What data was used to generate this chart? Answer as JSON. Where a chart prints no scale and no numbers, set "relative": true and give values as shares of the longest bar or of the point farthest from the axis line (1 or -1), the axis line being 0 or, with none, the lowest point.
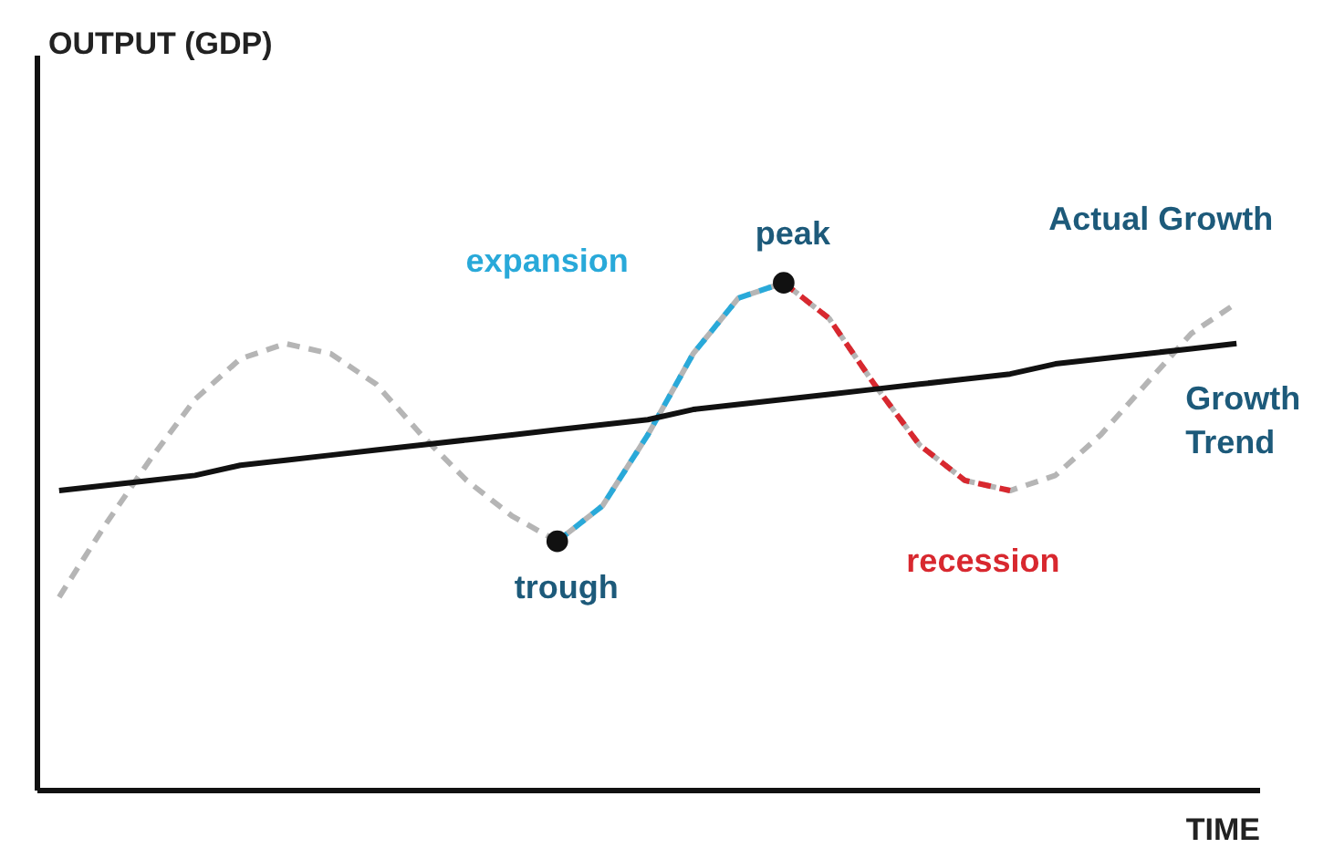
{
  "chart_data": {
    "type": "line",
    "relative": true,
    "xlabel": "TIME",
    "categories": [
      null,
      null,
      null,
      null,
      null,
      null,
      null,
      null,
      null,
      null,
      null,
      null,
      null,
      null,
      null,
      null,
      null,
      null,
      null,
      null,
      null,
      null,
      null,
      null,
      null,
      null,
      null
    ],
    "series": [
      {
        "name": "Actual Growth",
        "color": "#b5b5b5",
        "line_style": "dashed",
        "values": [
          0.38,
          0.52,
          0.65,
          0.77,
          0.85,
          0.88,
          0.86,
          0.8,
          0.7,
          0.61,
          0.54,
          0.49,
          0.56,
          0.7,
          0.86,
          0.97,
          1.0,
          0.93,
          0.8,
          0.68,
          0.61,
          0.59,
          0.62,
          0.7,
          0.8,
          0.9,
          0.96
        ]
      },
      {
        "color": "#29a9d9",
        "line_style": "dashed",
        "values": [
          null,
          null,
          null,
          null,
          null,
          null,
          null,
          null,
          null,
          null,
          null,
          0.49,
          0.56,
          0.7,
          0.86,
          0.97,
          1.0,
          null,
          null,
          null,
          null,
          null,
          null,
          null,
          null,
          null,
          null
        ]
      },
      {
        "color": "#d8282f",
        "line_style": "dashed",
        "values": [
          null,
          null,
          null,
          null,
          null,
          null,
          null,
          null,
          null,
          null,
          null,
          null,
          null,
          null,
          null,
          null,
          1.0,
          0.93,
          0.8,
          0.68,
          0.61,
          0.59,
          null,
          null,
          null,
          null,
          null
        ]
      },
      {
        "name": "Growth Trend",
        "color": "#111111",
        "line_style": "solid",
        "values": [
          0.59,
          0.6,
          0.61,
          0.62,
          0.64,
          0.65,
          0.66,
          0.67,
          0.68,
          0.69,
          0.7,
          0.71,
          0.72,
          0.73,
          0.75,
          0.76,
          0.77,
          0.78,
          0.79,
          0.8,
          0.81,
          0.82,
          0.84,
          0.85,
          0.86,
          0.87,
          0.88
        ]
      }
    ],
    "annotations": [
      "peak",
      "trough",
      "expansion",
      "recession",
      "OUTPUT (GDP)"
    ]
  }
}
